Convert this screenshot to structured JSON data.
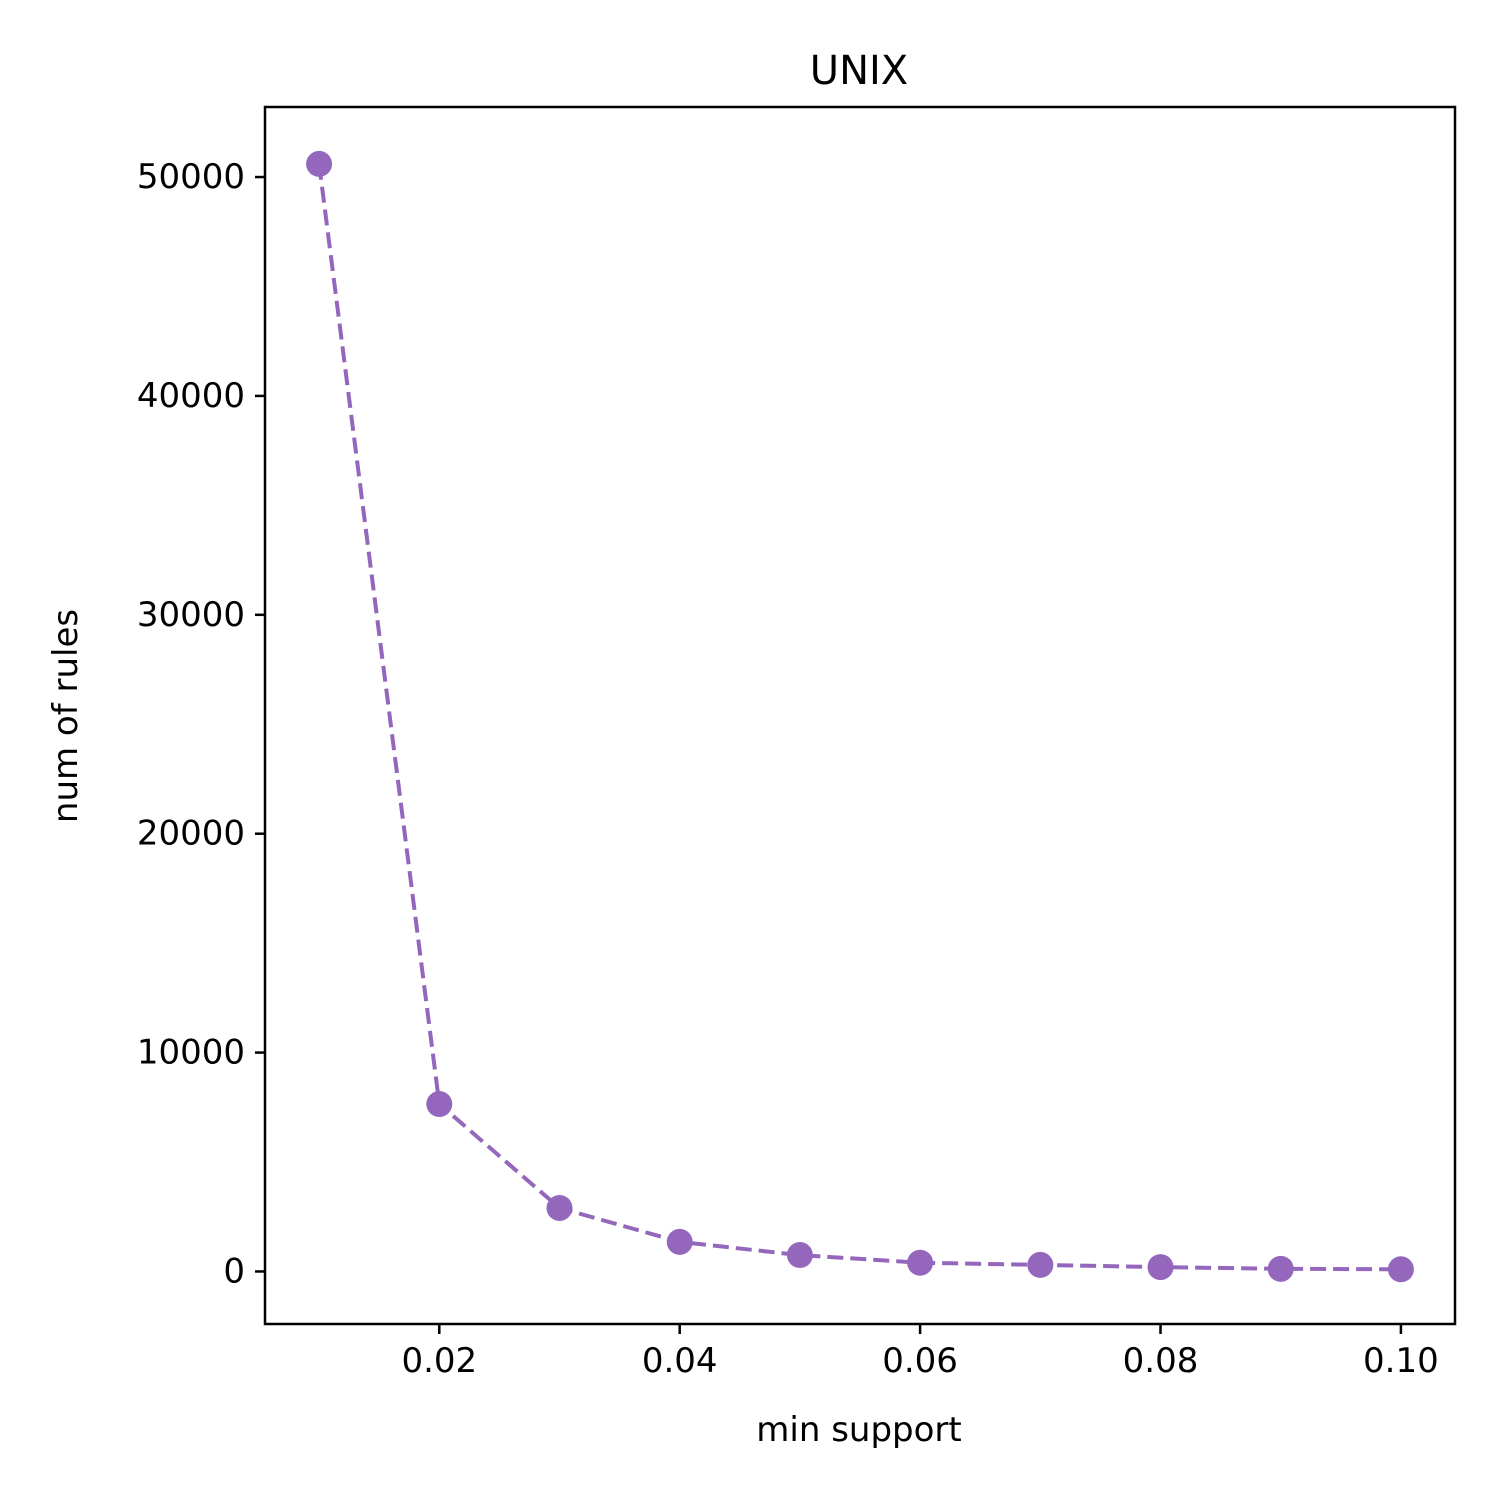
{
  "chart_data": {
    "type": "line",
    "title": "UNIX",
    "xlabel": "min support",
    "ylabel": "num of rules",
    "x": [
      0.01,
      0.02,
      0.03,
      0.04,
      0.05,
      0.06,
      0.07,
      0.08,
      0.09,
      0.1
    ],
    "series": [
      {
        "values": [
          50600,
          7650,
          2900,
          1350,
          750,
          400,
          300,
          200,
          120,
          100
        ],
        "color": "#9467bd",
        "line_style": "dashed",
        "marker": "circle"
      }
    ],
    "xlim": [
      0.0055,
      0.1045
    ],
    "ylim": [
      -2400,
      53200
    ],
    "x_ticks": [
      {
        "value": 0.02,
        "label": "0.02"
      },
      {
        "value": 0.04,
        "label": "0.04"
      },
      {
        "value": 0.06,
        "label": "0.06"
      },
      {
        "value": 0.08,
        "label": "0.08"
      },
      {
        "value": 0.1,
        "label": "0.10"
      }
    ],
    "y_ticks": [
      {
        "value": 0,
        "label": "0"
      },
      {
        "value": 10000,
        "label": "10000"
      },
      {
        "value": 20000,
        "label": "20000"
      },
      {
        "value": 30000,
        "label": "30000"
      },
      {
        "value": 40000,
        "label": "40000"
      },
      {
        "value": 50000,
        "label": "50000"
      }
    ],
    "grid": false,
    "legend": "none"
  }
}
